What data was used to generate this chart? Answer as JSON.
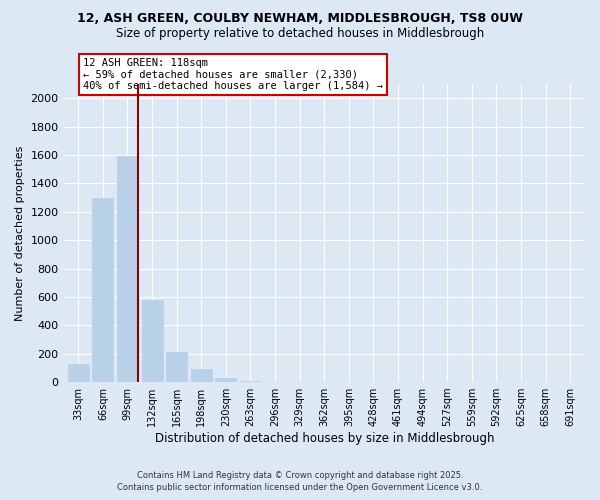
{
  "title_line1": "12, ASH GREEN, COULBY NEWHAM, MIDDLESBROUGH, TS8 0UW",
  "title_line2": "Size of property relative to detached houses in Middlesbrough",
  "xlabel": "Distribution of detached houses by size in Middlesbrough",
  "ylabel": "Number of detached properties",
  "background_color": "#dce9f5",
  "bar_color": "#b8d0e8",
  "bar_edge_color": "#b8d0e8",
  "marker_color": "#8b0000",
  "annotation_box_color": "#ffffff",
  "annotation_border_color": "#cc0000",
  "categories": [
    "33sqm",
    "66sqm",
    "99sqm",
    "132sqm",
    "165sqm",
    "198sqm",
    "230sqm",
    "263sqm",
    "296sqm",
    "329sqm",
    "362sqm",
    "395sqm",
    "428sqm",
    "461sqm",
    "494sqm",
    "527sqm",
    "559sqm",
    "592sqm",
    "625sqm",
    "658sqm",
    "691sqm"
  ],
  "values": [
    130,
    1295,
    1595,
    575,
    210,
    95,
    30,
    5,
    0,
    0,
    0,
    0,
    0,
    0,
    0,
    0,
    0,
    0,
    0,
    0,
    0
  ],
  "ylim": [
    0,
    2100
  ],
  "yticks": [
    0,
    200,
    400,
    600,
    800,
    1000,
    1200,
    1400,
    1600,
    1800,
    2000
  ],
  "property_bin_index": 2,
  "annotation_title": "12 ASH GREEN: 118sqm",
  "annotation_line1": "← 59% of detached houses are smaller (2,330)",
  "annotation_line2": "40% of semi-detached houses are larger (1,584) →",
  "footer_line1": "Contains HM Land Registry data © Crown copyright and database right 2025.",
  "footer_line2": "Contains public sector information licensed under the Open Government Licence v3.0."
}
